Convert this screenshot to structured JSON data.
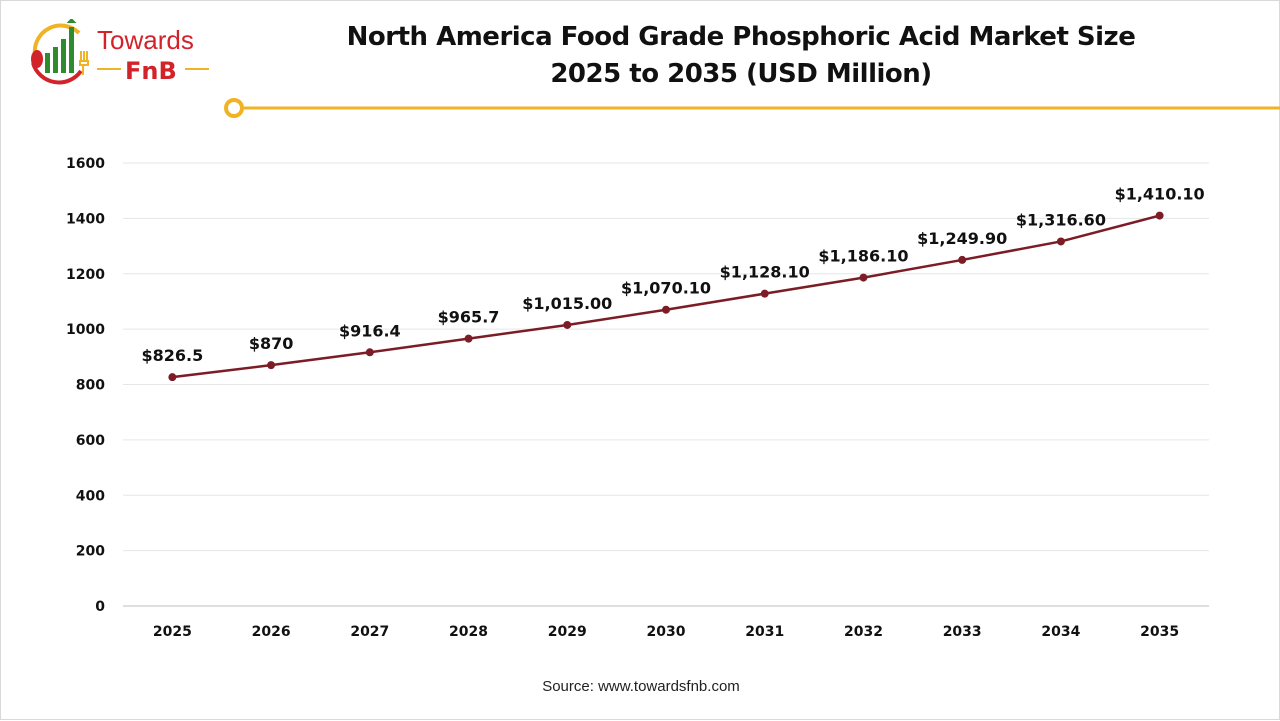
{
  "logo": {
    "text_top": "Towards",
    "text_bottom": "FnB"
  },
  "title_line1": "North America Food Grade Phosphoric Acid Market Size",
  "title_line2": "2025 to 2035 (USD Million)",
  "source": "Source: www.towardsfnb.com",
  "colors": {
    "line": "#7b1c26",
    "accent": "#f0b323",
    "brand_red": "#d2232a",
    "brand_green": "#2e8b2e",
    "grid": "#e6e6e6"
  },
  "chart_data": {
    "type": "line",
    "title": "North America Food Grade Phosphoric Acid Market Size 2025 to 2035 (USD Million)",
    "categories": [
      "2025",
      "2026",
      "2027",
      "2028",
      "2029",
      "2030",
      "2031",
      "2032",
      "2033",
      "2034",
      "2035"
    ],
    "values": [
      826.5,
      870,
      916.4,
      965.7,
      1015.0,
      1070.1,
      1128.1,
      1186.1,
      1249.9,
      1316.6,
      1410.1
    ],
    "data_labels": [
      "$826.5",
      "$870",
      "$916.4",
      "$965.7",
      "$1,015.00",
      "$1,070.10",
      "$1,128.10",
      "$1,186.10",
      "$1,249.90",
      "$1,316.60",
      "$1,410.10"
    ],
    "ylim": [
      0,
      1600
    ],
    "yticks": [
      "0",
      "200",
      "400",
      "600",
      "800",
      "1000",
      "1200",
      "1400",
      "1600"
    ],
    "xlabel": "",
    "ylabel": "",
    "grid": true,
    "legend": "none"
  }
}
